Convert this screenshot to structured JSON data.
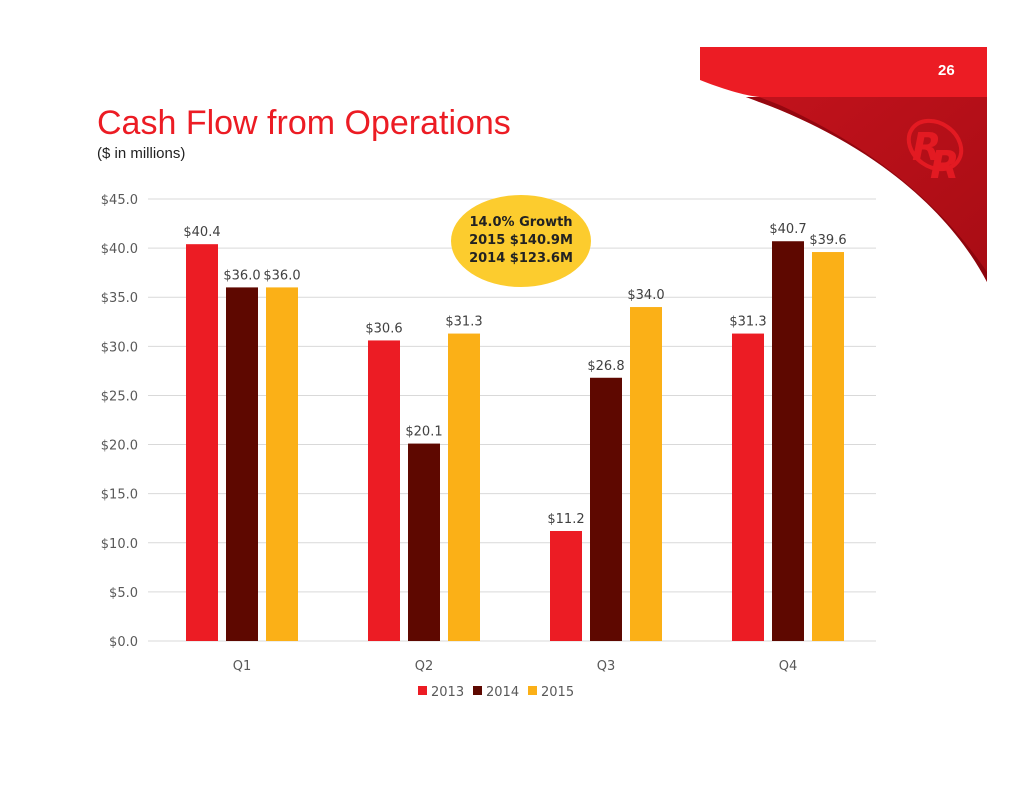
{
  "page_number": "26",
  "title": "Cash Flow from Operations",
  "subtitle": "($ in millions)",
  "callout": {
    "line1": "14.0% Growth",
    "line2": "2015 $140.9M",
    "line3": "2014 $123.6M"
  },
  "logo_text": "RR",
  "colors": {
    "2013": "#ec1c24",
    "2014": "#5e0800",
    "2015": "#fbb017",
    "brand": "#ec1c24"
  },
  "chart_data": {
    "type": "bar",
    "categories": [
      "Q1",
      "Q2",
      "Q3",
      "Q4"
    ],
    "series": [
      {
        "name": "2013",
        "values": [
          40.4,
          30.6,
          11.2,
          31.3
        ],
        "labels": [
          "$40.4",
          "$30.6",
          "$11.2",
          "$31.3"
        ]
      },
      {
        "name": "2014",
        "values": [
          36.0,
          20.1,
          26.8,
          40.7
        ],
        "labels": [
          "$36.0",
          "$20.1",
          "$26.8",
          "$40.7"
        ]
      },
      {
        "name": "2015",
        "values": [
          36.0,
          31.3,
          34.0,
          39.6
        ],
        "labels": [
          "$36.0",
          "$31.3",
          "$34.0",
          "$39.6"
        ]
      }
    ],
    "ylim": [
      0,
      45
    ],
    "yticks": [
      0,
      5,
      10,
      15,
      20,
      25,
      30,
      35,
      40,
      45
    ],
    "ytick_labels": [
      "$0.0",
      "$5.0",
      "$10.0",
      "$15.0",
      "$20.0",
      "$25.0",
      "$30.0",
      "$35.0",
      "$40.0",
      "$45.0"
    ],
    "grid": true,
    "legend": "bottom"
  }
}
